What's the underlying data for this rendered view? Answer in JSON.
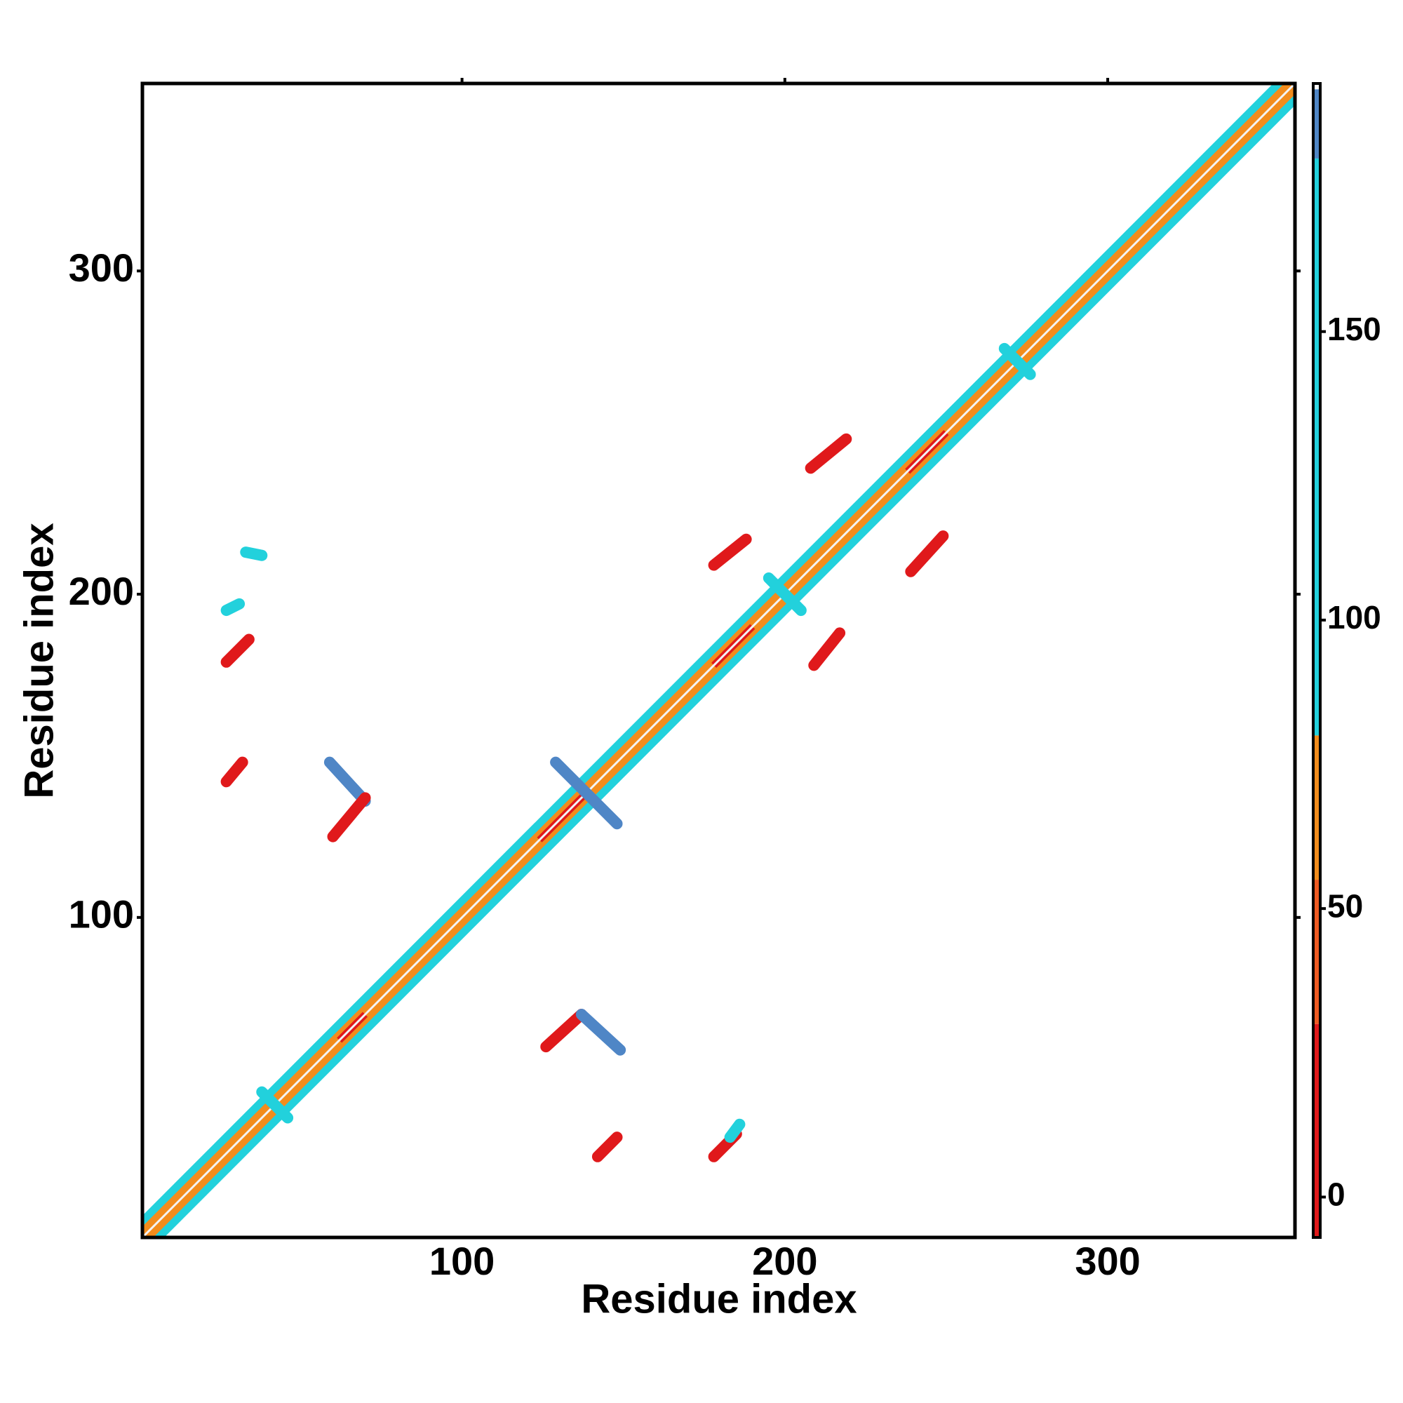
{
  "chart_data": {
    "type": "heatmap",
    "x_label": "Residue index",
    "y_label": "Residue index",
    "xlim": [
      1,
      358
    ],
    "ylim": [
      1,
      358
    ],
    "xticks": [
      100,
      200,
      300
    ],
    "yticks": [
      100,
      200,
      300
    ],
    "colorbar": {
      "ylim": [
        -7,
        193
      ],
      "yticks": [
        0,
        50,
        100,
        150
      ],
      "bands": [
        {
          "from": -7,
          "to": 30,
          "color": "#e0191b"
        },
        {
          "from": 30,
          "to": 55,
          "color": "#ee5a22"
        },
        {
          "from": 55,
          "to": 80,
          "color": "#f28c1c"
        },
        {
          "from": 80,
          "to": 180,
          "color": "#22d1dc"
        },
        {
          "from": 180,
          "to": 192,
          "color": "#4f86c6"
        },
        {
          "from": 192,
          "to": 193,
          "color": "#ffffff"
        }
      ]
    },
    "diagonal": [
      {
        "from": 1,
        "to": 358,
        "value": 110
      },
      {
        "from": 1,
        "to": 358,
        "value": 60
      },
      {
        "from": 124,
        "to": 138,
        "value": 5
      },
      {
        "from": 178,
        "to": 190,
        "value": 5
      },
      {
        "from": 62,
        "to": 70,
        "value": 5
      },
      {
        "from": 238,
        "to": 250,
        "value": 5
      }
    ],
    "segments": [
      {
        "x": [
          129,
          148
        ],
        "y": [
          148,
          129
        ],
        "value": 185
      },
      {
        "x": [
          59,
          70
        ],
        "y": [
          148,
          136
        ],
        "value": 185
      },
      {
        "x": [
          60,
          70
        ],
        "y": [
          125,
          137
        ],
        "value": 10
      },
      {
        "x": [
          27,
          32
        ],
        "y": [
          142,
          148
        ],
        "value": 10
      },
      {
        "x": [
          27,
          34
        ],
        "y": [
          179,
          186
        ],
        "value": 10
      },
      {
        "x": [
          126,
          137
        ],
        "y": [
          60,
          70
        ],
        "value": 10
      },
      {
        "x": [
          137,
          149
        ],
        "y": [
          70,
          59
        ],
        "value": 185
      },
      {
        "x": [
          142,
          148
        ],
        "y": [
          26,
          32
        ],
        "value": 10
      },
      {
        "x": [
          178,
          185
        ],
        "y": [
          26,
          33
        ],
        "value": 10
      },
      {
        "x": [
          178,
          188
        ],
        "y": [
          209,
          217
        ],
        "value": 10
      },
      {
        "x": [
          209,
          217
        ],
        "y": [
          178,
          188
        ],
        "value": 10
      },
      {
        "x": [
          208,
          219
        ],
        "y": [
          239,
          248
        ],
        "value": 10
      },
      {
        "x": [
          239,
          249
        ],
        "y": [
          207,
          218
        ],
        "value": 10
      },
      {
        "x": [
          38,
          46
        ],
        "y": [
          46,
          38
        ],
        "value": 110
      },
      {
        "x": [
          268,
          276
        ],
        "y": [
          276,
          268
        ],
        "value": 110
      },
      {
        "x": [
          195,
          205
        ],
        "y": [
          205,
          195
        ],
        "value": 110
      },
      {
        "x": [
          183,
          186
        ],
        "y": [
          32,
          36
        ],
        "value": 110
      },
      {
        "x": [
          27,
          31
        ],
        "y": [
          195,
          197
        ],
        "value": 110
      },
      {
        "x": [
          33,
          38
        ],
        "y": [
          213,
          212
        ],
        "value": 110
      }
    ]
  }
}
